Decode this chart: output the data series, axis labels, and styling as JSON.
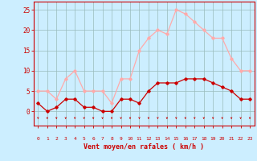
{
  "x": [
    0,
    1,
    2,
    3,
    4,
    5,
    6,
    7,
    8,
    9,
    10,
    11,
    12,
    13,
    14,
    15,
    16,
    17,
    18,
    19,
    20,
    21,
    22,
    23
  ],
  "wind_avg": [
    2,
    0,
    1,
    3,
    3,
    1,
    1,
    0,
    0,
    3,
    3,
    2,
    5,
    7,
    7,
    7,
    8,
    8,
    8,
    7,
    6,
    5,
    3,
    3
  ],
  "wind_gust": [
    5,
    5,
    3,
    8,
    10,
    5,
    5,
    5,
    2,
    8,
    8,
    15,
    18,
    20,
    19,
    25,
    24,
    22,
    20,
    18,
    18,
    13,
    10,
    10
  ],
  "color_avg": "#cc0000",
  "color_gust": "#ffaaaa",
  "bg_color": "#cceeff",
  "grid_color": "#99bbbb",
  "xlabel": "Vent moyen/en rafales ( km/h )",
  "yticks": [
    0,
    5,
    10,
    15,
    20,
    25
  ],
  "ylim": [
    -3.5,
    27
  ],
  "xlim": [
    -0.5,
    23.5
  ]
}
